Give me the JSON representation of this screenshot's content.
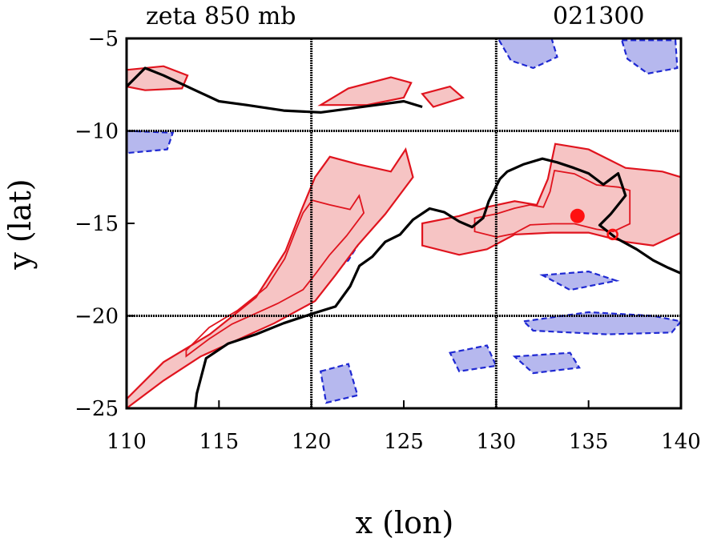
{
  "chart_data": {
    "type": "contour",
    "title": "zeta 850 mb",
    "timestamp": "021300",
    "xlabel": "x (lon)",
    "ylabel": "y (lat)",
    "xlim": [
      110,
      140
    ],
    "ylim": [
      -25,
      -5
    ],
    "xticks": [
      "110",
      "115",
      "120",
      "125",
      "130",
      "135",
      "140"
    ],
    "xtick_values": [
      110,
      115,
      120,
      125,
      130,
      135,
      140
    ],
    "yticks": [
      "−5",
      "−10",
      "−15",
      "−20",
      "−25"
    ],
    "ytick_values": [
      -5,
      -10,
      -15,
      -20,
      -25
    ],
    "grid_lon": [
      120,
      130
    ],
    "grid_lat": [
      -10,
      -20
    ],
    "colors": {
      "positive_line": "#e0141e",
      "positive_fill": "#f6c4c4",
      "negative_line": "#1e28d2",
      "negative_fill": "#b6b8ee",
      "coast": "#000000",
      "grid": "#000000"
    },
    "marker": {
      "lon": 134.4,
      "lat": -14.6,
      "label": ""
    },
    "marker2": {
      "lon": 136.3,
      "lat": -15.6
    },
    "coastline": [
      [
        110.0,
        -7.6
      ],
      [
        111.0,
        -6.6
      ],
      [
        112.0,
        -7.0
      ],
      [
        113.5,
        -7.7
      ],
      [
        115.0,
        -8.4
      ],
      [
        116.5,
        -8.6
      ],
      [
        118.5,
        -8.9
      ],
      [
        120.5,
        -9.0
      ],
      [
        122.0,
        -8.8
      ],
      [
        123.5,
        -8.6
      ],
      [
        125.0,
        -8.4
      ],
      [
        126.0,
        -8.7
      ]
    ],
    "coastline_au": [
      [
        113.6,
        -26.0
      ],
      [
        113.8,
        -24.2
      ],
      [
        114.3,
        -22.3
      ],
      [
        115.5,
        -21.5
      ],
      [
        117.0,
        -21.0
      ],
      [
        118.5,
        -20.4
      ],
      [
        120.0,
        -19.9
      ],
      [
        121.3,
        -19.5
      ],
      [
        122.1,
        -18.4
      ],
      [
        122.6,
        -17.3
      ],
      [
        123.3,
        -16.8
      ],
      [
        124.0,
        -16.0
      ],
      [
        124.8,
        -15.6
      ],
      [
        125.5,
        -14.8
      ],
      [
        126.4,
        -14.2
      ],
      [
        127.2,
        -14.4
      ],
      [
        128.0,
        -14.9
      ],
      [
        128.7,
        -15.2
      ],
      [
        129.3,
        -14.7
      ],
      [
        129.6,
        -13.8
      ],
      [
        130.2,
        -12.6
      ],
      [
        130.6,
        -12.2
      ],
      [
        131.5,
        -11.8
      ],
      [
        132.5,
        -11.5
      ],
      [
        133.3,
        -11.7
      ],
      [
        134.2,
        -12.0
      ],
      [
        135.0,
        -12.3
      ],
      [
        135.8,
        -12.9
      ],
      [
        136.6,
        -12.3
      ],
      [
        137.0,
        -13.5
      ],
      [
        136.2,
        -14.5
      ],
      [
        135.6,
        -15.1
      ],
      [
        136.5,
        -15.8
      ],
      [
        137.6,
        -16.4
      ],
      [
        138.5,
        -17.0
      ],
      [
        139.3,
        -17.4
      ],
      [
        140.0,
        -17.7
      ]
    ],
    "positive_regions": [
      [
        [
          110.0,
          -24.5
        ],
        [
          112.0,
          -22.5
        ],
        [
          114.5,
          -21.0
        ],
        [
          117.0,
          -19.0
        ],
        [
          118.6,
          -16.5
        ],
        [
          119.5,
          -14.2
        ],
        [
          120.2,
          -12.5
        ],
        [
          121.0,
          -11.4
        ],
        [
          122.5,
          -11.8
        ],
        [
          124.3,
          -12.2
        ],
        [
          125.1,
          -11.0
        ],
        [
          125.5,
          -12.5
        ],
        [
          124.0,
          -14.5
        ],
        [
          122.5,
          -16.2
        ],
        [
          121.3,
          -17.8
        ],
        [
          120.2,
          -19.2
        ],
        [
          118.0,
          -20.4
        ],
        [
          116.0,
          -21.3
        ],
        [
          114.0,
          -22.2
        ],
        [
          112.0,
          -23.5
        ],
        [
          110.0,
          -25.0
        ]
      ],
      [
        [
          126.0,
          -15.0
        ],
        [
          128.0,
          -14.6
        ],
        [
          129.6,
          -14.1
        ],
        [
          131.0,
          -13.8
        ],
        [
          132.2,
          -14.0
        ],
        [
          132.8,
          -12.6
        ],
        [
          133.2,
          -10.7
        ],
        [
          135.0,
          -11.0
        ],
        [
          137.0,
          -12.0
        ],
        [
          139.0,
          -12.2
        ],
        [
          140.0,
          -12.5
        ],
        [
          140.0,
          -15.5
        ],
        [
          138.5,
          -16.2
        ],
        [
          137.0,
          -16.0
        ],
        [
          135.0,
          -15.5
        ],
        [
          133.0,
          -15.5
        ],
        [
          131.0,
          -15.6
        ],
        [
          129.5,
          -16.4
        ],
        [
          128.0,
          -16.7
        ],
        [
          126.0,
          -16.2
        ]
      ],
      [
        [
          110.0,
          -6.7
        ],
        [
          112.0,
          -6.5
        ],
        [
          113.3,
          -7.0
        ],
        [
          113.0,
          -7.7
        ],
        [
          111.0,
          -7.8
        ],
        [
          110.0,
          -7.6
        ]
      ],
      [
        [
          120.5,
          -8.6
        ],
        [
          122.0,
          -7.7
        ],
        [
          124.3,
          -7.1
        ],
        [
          125.4,
          -7.4
        ],
        [
          125.0,
          -8.2
        ],
        [
          123.0,
          -8.6
        ]
      ],
      [
        [
          126.0,
          -8.0
        ],
        [
          127.5,
          -7.6
        ],
        [
          128.2,
          -8.2
        ],
        [
          126.6,
          -8.7
        ]
      ]
    ],
    "negative_regions": [
      [
        [
          130.1,
          -5.0
        ],
        [
          133.0,
          -5.0
        ],
        [
          133.3,
          -6.0
        ],
        [
          132.0,
          -6.6
        ],
        [
          130.8,
          -6.2
        ]
      ],
      [
        [
          136.8,
          -5.1
        ],
        [
          139.7,
          -5.1
        ],
        [
          139.8,
          -6.6
        ],
        [
          138.2,
          -6.9
        ],
        [
          137.1,
          -6.1
        ]
      ],
      [
        [
          119.0,
          -17.5
        ],
        [
          121.0,
          -16.4
        ],
        [
          123.0,
          -15.4
        ],
        [
          122.0,
          -17.0
        ],
        [
          120.0,
          -18.6
        ]
      ],
      [
        [
          110.0,
          -10.0
        ],
        [
          112.5,
          -10.1
        ],
        [
          112.2,
          -11.0
        ],
        [
          110.0,
          -11.2
        ]
      ],
      [
        [
          127.5,
          -22.0
        ],
        [
          129.5,
          -21.6
        ],
        [
          130.0,
          -22.7
        ],
        [
          128.0,
          -23.0
        ]
      ],
      [
        [
          120.5,
          -23.0
        ],
        [
          122.0,
          -22.6
        ],
        [
          122.5,
          -24.3
        ],
        [
          120.8,
          -24.7
        ]
      ],
      [
        [
          131.5,
          -20.3
        ],
        [
          135.0,
          -19.8
        ],
        [
          138.5,
          -20.0
        ],
        [
          140.0,
          -20.3
        ],
        [
          139.5,
          -20.9
        ],
        [
          136.0,
          -21.0
        ],
        [
          132.0,
          -20.8
        ]
      ],
      [
        [
          131.0,
          -22.2
        ],
        [
          134.0,
          -22.0
        ],
        [
          134.5,
          -22.8
        ],
        [
          132.0,
          -23.1
        ]
      ],
      [
        [
          132.5,
          -17.8
        ],
        [
          135.0,
          -17.6
        ],
        [
          136.5,
          -18.1
        ],
        [
          134.0,
          -18.6
        ]
      ]
    ]
  }
}
